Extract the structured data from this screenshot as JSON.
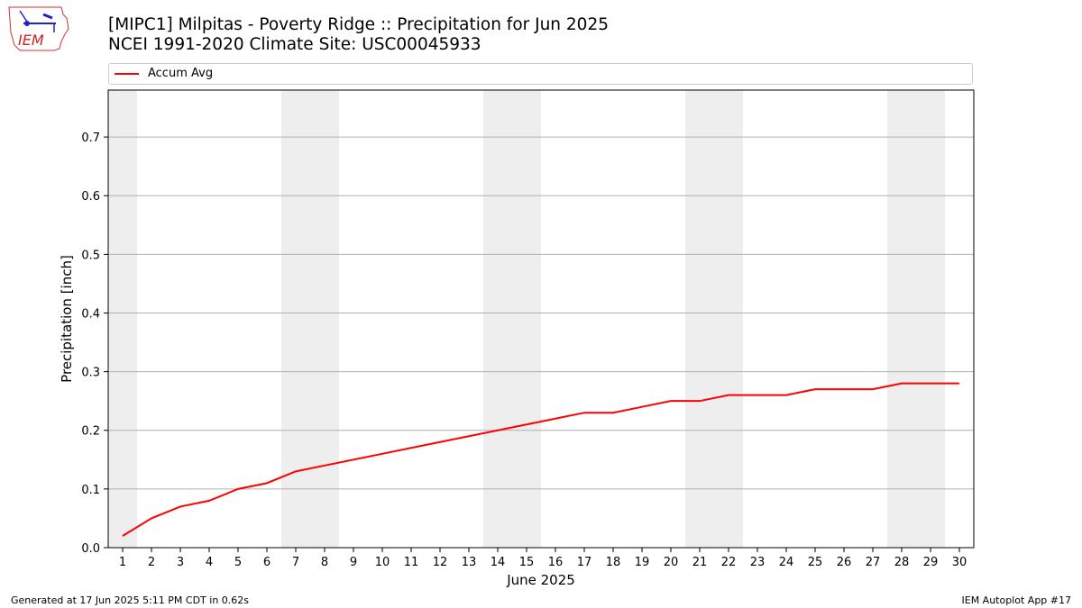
{
  "header": {
    "title_line1": "[MIPC1] Milpitas - Poverty Ridge :: Precipitation for Jun 2025",
    "title_line2": "NCEI 1991-2020 Climate Site: USC00045933",
    "logo_text": "IEM"
  },
  "legend": {
    "entry": "Accum Avg"
  },
  "footer": {
    "left": "Generated at 17 Jun 2025 5:11 PM CDT in 0.62s",
    "right": "IEM Autoplot App #17"
  },
  "colors": {
    "line": "#ff0000",
    "weekend_shade": "#eeeeee",
    "grid": "#b0b0b0"
  },
  "chart_data": {
    "type": "line",
    "title": "[MIPC1] Milpitas - Poverty Ridge :: Precipitation for Jun 2025",
    "subtitle": "NCEI 1991-2020 Climate Site: USC00045933",
    "xlabel": "June 2025",
    "ylabel": "Precipitation [inch]",
    "xlim": [
      0.5,
      30.5
    ],
    "ylim": [
      0,
      0.78
    ],
    "yticks": [
      0.0,
      0.1,
      0.2,
      0.3,
      0.4,
      0.5,
      0.6,
      0.7
    ],
    "ytick_labels": [
      "0.0",
      "0.1",
      "0.2",
      "0.3",
      "0.4",
      "0.5",
      "0.6",
      "0.7"
    ],
    "grid": "horizontal",
    "legend_position": "top",
    "shaded_days": [
      1,
      7,
      8,
      14,
      15,
      21,
      22,
      28,
      29
    ],
    "x": [
      1,
      2,
      3,
      4,
      5,
      6,
      7,
      8,
      9,
      10,
      11,
      12,
      13,
      14,
      15,
      16,
      17,
      18,
      19,
      20,
      21,
      22,
      23,
      24,
      25,
      26,
      27,
      28,
      29,
      30
    ],
    "series": [
      {
        "name": "Accum Avg",
        "values": [
          0.02,
          0.05,
          0.07,
          0.08,
          0.1,
          0.11,
          0.13,
          0.14,
          0.15,
          0.16,
          0.17,
          0.18,
          0.19,
          0.2,
          0.21,
          0.22,
          0.23,
          0.23,
          0.24,
          0.25,
          0.25,
          0.26,
          0.26,
          0.26,
          0.27,
          0.27,
          0.27,
          0.28,
          0.28,
          0.28
        ]
      }
    ]
  }
}
